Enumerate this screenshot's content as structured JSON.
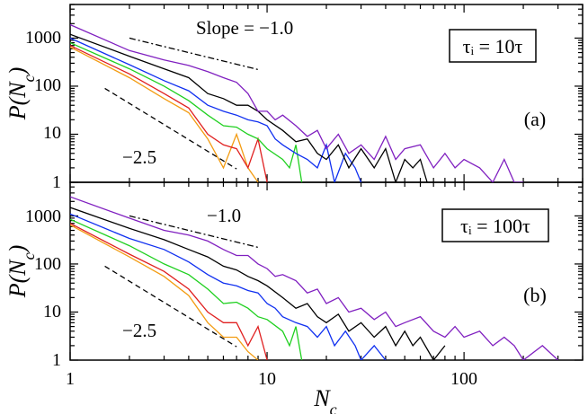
{
  "chart_data": [
    {
      "type": "line",
      "panel_label": "(a)",
      "legend_label": "τᵢ = 10τ",
      "annotations": {
        "slope_top": "Slope = −1.0",
        "slope_bottom": "−2.5"
      },
      "xlabel": "N_c",
      "ylabel": "P(N_c)",
      "xscale": "log",
      "yscale": "log",
      "xlim": [
        1,
        400
      ],
      "ylim": [
        1,
        5000
      ],
      "reference_lines": [
        {
          "style": "dash-dot",
          "slope": -1.0,
          "x": [
            2,
            9
          ],
          "y": [
            1000,
            222
          ]
        },
        {
          "style": "dashed",
          "slope": -2.5,
          "x": [
            1.5,
            7
          ],
          "y": [
            90,
            1.9
          ]
        }
      ],
      "series": [
        {
          "name": "orange",
          "color": "#f39c12",
          "x": [
            1,
            2,
            3,
            4,
            5,
            6,
            7,
            8,
            9
          ],
          "y": [
            650,
            150,
            55,
            28,
            8,
            2,
            10,
            2,
            1
          ]
        },
        {
          "name": "red",
          "color": "#e02020",
          "x": [
            1,
            2,
            3,
            4,
            5,
            6,
            7,
            8,
            9,
            10
          ],
          "y": [
            700,
            180,
            70,
            35,
            10,
            6,
            5,
            2,
            8,
            1
          ]
        },
        {
          "name": "green",
          "color": "#20d020",
          "x": [
            1,
            2,
            3,
            4,
            5,
            6,
            7,
            8,
            9,
            10,
            12,
            13,
            14,
            15
          ],
          "y": [
            800,
            230,
            100,
            50,
            25,
            15,
            14,
            10,
            8,
            5,
            3,
            2,
            6,
            1
          ]
        },
        {
          "name": "blue",
          "color": "#1030f0",
          "x": [
            1,
            2,
            3,
            4,
            5,
            6,
            7,
            8,
            9,
            10,
            11,
            12,
            14,
            16,
            18,
            20,
            22,
            25,
            28,
            30
          ],
          "y": [
            1000,
            280,
            130,
            80,
            40,
            30,
            25,
            20,
            18,
            15,
            8,
            6,
            4,
            3,
            2,
            6,
            1,
            4,
            2,
            1
          ]
        },
        {
          "name": "black",
          "color": "#000000",
          "x": [
            1,
            2,
            3,
            4,
            5,
            6,
            7,
            8,
            9,
            10,
            12,
            14,
            16,
            18,
            20,
            23,
            26,
            30,
            35,
            40,
            45,
            50,
            55,
            60,
            65,
            70
          ],
          "y": [
            1200,
            420,
            230,
            150,
            70,
            55,
            40,
            40,
            30,
            20,
            12,
            7,
            8,
            4,
            3,
            6,
            2,
            5,
            2,
            5,
            1,
            3,
            2,
            3,
            1,
            1
          ]
        },
        {
          "name": "purple",
          "color": "#8020c0",
          "x": [
            1,
            2,
            3,
            4,
            5,
            6,
            7,
            8,
            9,
            10,
            11,
            12,
            14,
            16,
            18,
            20,
            23,
            26,
            30,
            35,
            40,
            45,
            50,
            60,
            70,
            80,
            90,
            100,
            120,
            140,
            160,
            180,
            200
          ],
          "y": [
            1900,
            550,
            350,
            270,
            200,
            150,
            120,
            70,
            30,
            30,
            20,
            25,
            15,
            9,
            12,
            5,
            10,
            4,
            6,
            3,
            9,
            3,
            5,
            6,
            2,
            4,
            2,
            3,
            2,
            1,
            3,
            1,
            1
          ]
        }
      ]
    },
    {
      "type": "line",
      "panel_label": "(b)",
      "legend_label": "τᵢ = 100τ",
      "annotations": {
        "slope_top": "−1.0",
        "slope_bottom": "−2.5"
      },
      "xlabel": "N_c",
      "ylabel": "P(N_c)",
      "xscale": "log",
      "yscale": "log",
      "xlim": [
        1,
        400
      ],
      "ylim": [
        1,
        5000
      ],
      "reference_lines": [
        {
          "style": "dash-dot",
          "slope": -1.0,
          "x": [
            2,
            9
          ],
          "y": [
            1000,
            222
          ]
        },
        {
          "style": "dashed",
          "slope": -2.5,
          "x": [
            1.5,
            7
          ],
          "y": [
            90,
            1.9
          ]
        }
      ],
      "series": [
        {
          "name": "orange",
          "color": "#f39c12",
          "x": [
            1,
            2,
            3,
            4,
            5,
            6,
            7,
            8,
            9
          ],
          "y": [
            650,
            140,
            55,
            22,
            6,
            3,
            3,
            1.5,
            1
          ]
        },
        {
          "name": "red",
          "color": "#e02020",
          "x": [
            1,
            2,
            3,
            4,
            5,
            6,
            7,
            8,
            9,
            10
          ],
          "y": [
            700,
            160,
            70,
            30,
            10,
            6,
            6,
            2,
            5,
            1
          ]
        },
        {
          "name": "green",
          "color": "#20d020",
          "x": [
            1,
            2,
            3,
            4,
            5,
            6,
            7,
            8,
            9,
            10,
            12,
            13,
            14,
            15
          ],
          "y": [
            850,
            240,
            100,
            60,
            30,
            15,
            16,
            12,
            8,
            7,
            4,
            2,
            5,
            1
          ]
        },
        {
          "name": "blue",
          "color": "#1030f0",
          "x": [
            1,
            2,
            3,
            4,
            5,
            6,
            7,
            8,
            9,
            10,
            11,
            12,
            14,
            16,
            18,
            20,
            22,
            25,
            28,
            30,
            35,
            40
          ],
          "y": [
            1100,
            340,
            200,
            110,
            60,
            40,
            35,
            28,
            25,
            15,
            12,
            8,
            6,
            5,
            3,
            5,
            2,
            4,
            2,
            1,
            2,
            1
          ]
        },
        {
          "name": "black",
          "color": "#000000",
          "x": [
            1,
            2,
            3,
            4,
            5,
            6,
            7,
            8,
            9,
            10,
            12,
            14,
            16,
            18,
            20,
            23,
            26,
            30,
            35,
            40,
            45,
            50,
            55,
            60,
            70,
            80
          ],
          "y": [
            1500,
            550,
            320,
            200,
            140,
            90,
            75,
            55,
            45,
            35,
            20,
            12,
            15,
            8,
            6,
            9,
            4,
            6,
            3,
            5,
            2,
            4,
            2,
            3,
            1,
            2
          ]
        },
        {
          "name": "purple",
          "color": "#8020c0",
          "x": [
            1,
            2,
            3,
            4,
            5,
            6,
            7,
            8,
            9,
            10,
            11,
            12,
            14,
            16,
            18,
            20,
            23,
            26,
            30,
            35,
            40,
            45,
            50,
            60,
            70,
            80,
            90,
            100,
            120,
            140,
            160,
            180,
            200,
            250,
            300
          ],
          "y": [
            2500,
            900,
            500,
            400,
            300,
            200,
            150,
            150,
            100,
            80,
            55,
            60,
            45,
            25,
            30,
            15,
            20,
            10,
            12,
            7,
            10,
            5,
            6,
            8,
            4,
            3,
            5,
            3,
            4,
            2,
            3,
            2,
            1,
            2,
            1
          ]
        }
      ]
    }
  ]
}
